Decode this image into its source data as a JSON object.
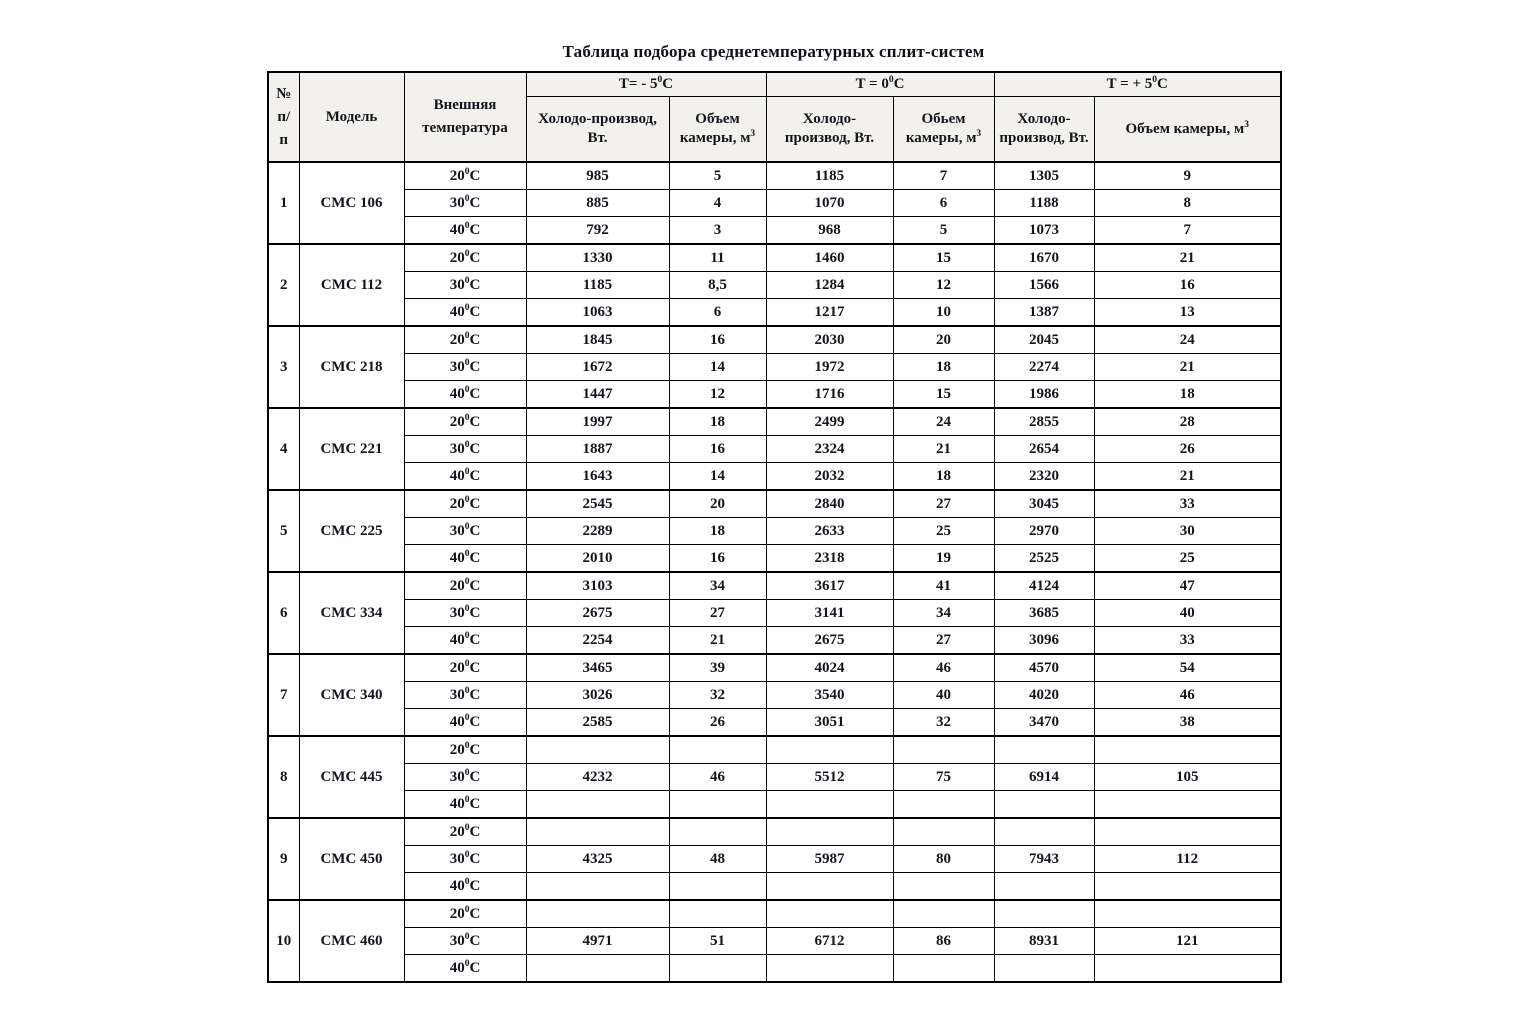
{
  "title": "Таблица подбора среднетемпературных сплит-систем",
  "meta": {
    "deg_sup": "0",
    "deg_letter": "C",
    "vol_sup": "3"
  },
  "header": {
    "num_lines": [
      "№",
      "п/",
      "п"
    ],
    "model": "Модель",
    "ext_temp_lines": [
      "Внешняя",
      "температура"
    ],
    "groups": [
      {
        "pre": "T= - 5"
      },
      {
        "pre": "T = 0"
      },
      {
        "pre": "T = + 5"
      }
    ],
    "subs": [
      {
        "lines": [
          "Холодо-производ,",
          "Вт."
        ]
      },
      {
        "lines": [
          "Объем",
          "камеры, м"
        ],
        "sup": "3"
      },
      {
        "lines": [
          "Холодо-",
          "производ, Вт."
        ]
      },
      {
        "lines": [
          "Обьем",
          "камеры, м"
        ],
        "sup": "3"
      },
      {
        "lines": [
          "Холодо-",
          "производ, Вт."
        ]
      },
      {
        "lines": [
          "Объем камеры, м"
        ],
        "sup": "3"
      }
    ]
  },
  "rows": [
    {
      "num": "1",
      "model": "СМС 106",
      "temps": [
        {
          "t": "20",
          "values": [
            "985",
            "5",
            "1185",
            "7",
            "1305",
            "9"
          ]
        },
        {
          "t": "30",
          "values": [
            "885",
            "4",
            "1070",
            "6",
            "1188",
            "8"
          ]
        },
        {
          "t": "40",
          "values": [
            "792",
            "3",
            "968",
            "5",
            "1073",
            "7"
          ]
        }
      ]
    },
    {
      "num": "2",
      "model": "СМС 112",
      "temps": [
        {
          "t": "20",
          "values": [
            "1330",
            "11",
            "1460",
            "15",
            "1670",
            "21"
          ]
        },
        {
          "t": "30",
          "values": [
            "1185",
            "8,5",
            "1284",
            "12",
            "1566",
            "16"
          ]
        },
        {
          "t": "40",
          "values": [
            "1063",
            "6",
            "1217",
            "10",
            "1387",
            "13"
          ]
        }
      ]
    },
    {
      "num": "3",
      "model": "СМС 218",
      "temps": [
        {
          "t": "20",
          "values": [
            "1845",
            "16",
            "2030",
            "20",
            "2045",
            "24"
          ]
        },
        {
          "t": "30",
          "values": [
            "1672",
            "14",
            "1972",
            "18",
            "2274",
            "21"
          ]
        },
        {
          "t": "40",
          "values": [
            "1447",
            "12",
            "1716",
            "15",
            "1986",
            "18"
          ]
        }
      ]
    },
    {
      "num": "4",
      "model": "СМС 221",
      "temps": [
        {
          "t": "20",
          "values": [
            "1997",
            "18",
            "2499",
            "24",
            "2855",
            "28"
          ]
        },
        {
          "t": "30",
          "values": [
            "1887",
            "16",
            "2324",
            "21",
            "2654",
            "26"
          ]
        },
        {
          "t": "40",
          "values": [
            "1643",
            "14",
            "2032",
            "18",
            "2320",
            "21"
          ]
        }
      ]
    },
    {
      "num": "5",
      "model": "СМС 225",
      "temps": [
        {
          "t": "20",
          "values": [
            "2545",
            "20",
            "2840",
            "27",
            "3045",
            "33"
          ]
        },
        {
          "t": "30",
          "values": [
            "2289",
            "18",
            "2633",
            "25",
            "2970",
            "30"
          ]
        },
        {
          "t": "40",
          "values": [
            "2010",
            "16",
            "2318",
            "19",
            "2525",
            "25"
          ]
        }
      ]
    },
    {
      "num": "6",
      "model": "СМС 334",
      "temps": [
        {
          "t": "20",
          "values": [
            "3103",
            "34",
            "3617",
            "41",
            "4124",
            "47"
          ]
        },
        {
          "t": "30",
          "values": [
            "2675",
            "27",
            "3141",
            "34",
            "3685",
            "40"
          ]
        },
        {
          "t": "40",
          "values": [
            "2254",
            "21",
            "2675",
            "27",
            "3096",
            "33"
          ]
        }
      ]
    },
    {
      "num": "7",
      "model": "СМС 340",
      "temps": [
        {
          "t": "20",
          "values": [
            "3465",
            "39",
            "4024",
            "46",
            "4570",
            "54"
          ]
        },
        {
          "t": "30",
          "values": [
            "3026",
            "32",
            "3540",
            "40",
            "4020",
            "46"
          ]
        },
        {
          "t": "40",
          "values": [
            "2585",
            "26",
            "3051",
            "32",
            "3470",
            "38"
          ]
        }
      ]
    },
    {
      "num": "8",
      "model": "СМС 445",
      "temps": [
        {
          "t": "20",
          "values": [
            "",
            "",
            "",
            "",
            "",
            ""
          ]
        },
        {
          "t": "30",
          "values": [
            "4232",
            "46",
            "5512",
            "75",
            "6914",
            "105"
          ]
        },
        {
          "t": "40",
          "values": [
            "",
            "",
            "",
            "",
            "",
            ""
          ]
        }
      ]
    },
    {
      "num": "9",
      "model": "СМС 450",
      "temps": [
        {
          "t": "20",
          "values": [
            "",
            "",
            "",
            "",
            "",
            ""
          ]
        },
        {
          "t": "30",
          "values": [
            "4325",
            "48",
            "5987",
            "80",
            "7943",
            "112"
          ]
        },
        {
          "t": "40",
          "values": [
            "",
            "",
            "",
            "",
            "",
            ""
          ]
        }
      ]
    },
    {
      "num": "10",
      "model": "СМС 460",
      "temps": [
        {
          "t": "20",
          "values": [
            "",
            "",
            "",
            "",
            "",
            ""
          ]
        },
        {
          "t": "30",
          "values": [
            "4971",
            "51",
            "6712",
            "86",
            "8931",
            "121"
          ]
        },
        {
          "t": "40",
          "values": [
            "",
            "",
            "",
            "",
            "",
            ""
          ]
        }
      ]
    }
  ]
}
